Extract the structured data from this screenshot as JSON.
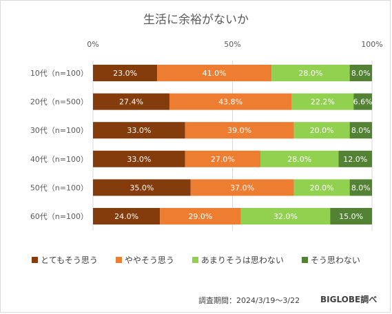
{
  "title": "生活に余裕がないか",
  "chart_data": {
    "type": "bar",
    "orientation": "horizontal",
    "stacked": true,
    "percent": true,
    "title": "生活に余裕がないか",
    "xlim": [
      0,
      100
    ],
    "x_ticks": [
      "0%",
      "50%",
      "100%"
    ],
    "categories": [
      "10代（n=100）",
      "20代（n=500）",
      "30代（n=100）",
      "40代（n=100）",
      "50代（n=100）",
      "60代（n=100）"
    ],
    "series": [
      {
        "name": "とてもそう思う",
        "color": "#843c0c",
        "values": [
          23.0,
          27.4,
          33.0,
          33.0,
          35.0,
          24.0
        ]
      },
      {
        "name": "ややそう思う",
        "color": "#ed7d31",
        "values": [
          41.0,
          43.8,
          39.0,
          27.0,
          37.0,
          29.0
        ]
      },
      {
        "name": "あまりそうは思わない",
        "color": "#92d050",
        "values": [
          28.0,
          22.2,
          20.0,
          28.0,
          20.0,
          32.0
        ]
      },
      {
        "name": "そう思わない",
        "color": "#548235",
        "values": [
          8.0,
          6.6,
          8.0,
          12.0,
          8.0,
          15.0
        ]
      }
    ],
    "grid": true,
    "legend_position": "bottom"
  },
  "footer": {
    "note": "調査期間：2024/3/19〜3/22",
    "brand": "BIGLOBE調べ"
  }
}
